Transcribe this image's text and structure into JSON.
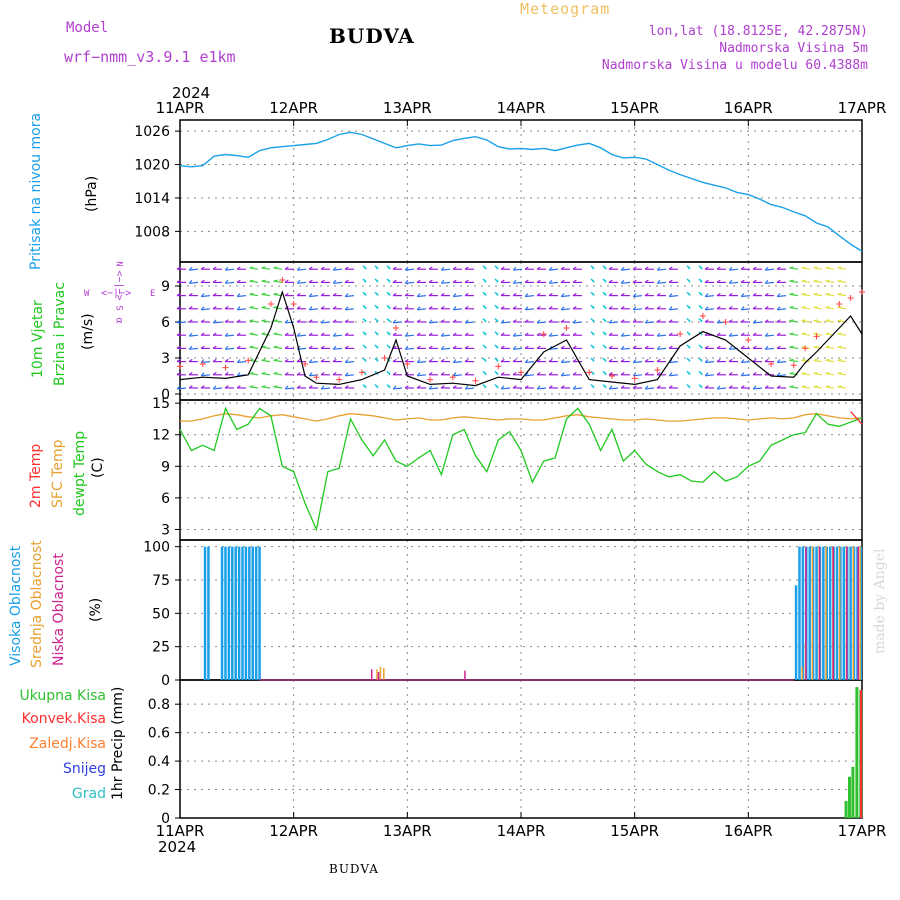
{
  "header": {
    "model_label": "Model",
    "model_name": "wrf−nmm_v3.9.1  e1km",
    "city": "BUDVA",
    "meteogram": "Meteogram",
    "lonlat": "lon,lat (18.8125E, 42.2875N)",
    "elevation": "Nadmorska Visina 5m",
    "model_elevation": "Nadmorska Visina u modelu 60.4388m",
    "footer_city": "BUDVA",
    "watermark": "made by Angel"
  },
  "time_axis": {
    "year": "2024",
    "labels": [
      "11APR",
      "12APR",
      "13APR",
      "14APR",
      "15APR",
      "16APR",
      "17APR"
    ]
  },
  "colors": {
    "pressure": "#1aa0e8",
    "wind_speed": "#000000",
    "wind_gust": "#ff4040",
    "temp2m": "#ff3030",
    "sfc": "#e8a030",
    "dewpt": "#20c820",
    "cloud_high": "#1aa0e8",
    "cloud_mid": "#e8a030",
    "cloud_low": "#d02090",
    "precip_total": "#30c030",
    "precip_conv": "#ff3030",
    "magenta": "#b040d0"
  },
  "chart_data": [
    {
      "type": "line",
      "panel": "pressure",
      "ylabel_1": "Pritisak na nivou mora",
      "ylabel_2": "(hPa)",
      "yticks": [
        1008,
        1014,
        1020,
        1026
      ],
      "ylim": [
        1002.5,
        1028
      ],
      "x_days": [
        0,
        0.1,
        0.2,
        0.3,
        0.4,
        0.5,
        0.6,
        0.7,
        0.8,
        0.9,
        1.0,
        1.1,
        1.2,
        1.3,
        1.4,
        1.5,
        1.6,
        1.7,
        1.8,
        1.9,
        2.0,
        2.1,
        2.2,
        2.3,
        2.4,
        2.5,
        2.6,
        2.7,
        2.8,
        2.9,
        3.0,
        3.1,
        3.2,
        3.3,
        3.4,
        3.5,
        3.6,
        3.7,
        3.8,
        3.9,
        4.0,
        4.1,
        4.2,
        4.3,
        4.4,
        4.5,
        4.6,
        4.7,
        4.8,
        4.9,
        5.0,
        5.1,
        5.2,
        5.3,
        5.4,
        5.5,
        5.6,
        5.7,
        5.8,
        5.9,
        6.0
      ],
      "values": [
        1019.8,
        1019.6,
        1019.8,
        1021.5,
        1021.8,
        1021.6,
        1021.3,
        1022.5,
        1023.0,
        1023.2,
        1023.4,
        1023.6,
        1023.8,
        1024.5,
        1025.4,
        1025.8,
        1025.4,
        1024.6,
        1023.8,
        1023.0,
        1023.4,
        1023.7,
        1023.4,
        1023.5,
        1024.3,
        1024.7,
        1025.0,
        1024.4,
        1023.2,
        1022.8,
        1022.9,
        1022.7,
        1022.9,
        1022.5,
        1023.0,
        1023.5,
        1023.8,
        1023.0,
        1021.8,
        1021.2,
        1021.3,
        1021.0,
        1020.0,
        1019.0,
        1018.2,
        1017.5,
        1016.8,
        1016.3,
        1015.8,
        1015.0,
        1014.6,
        1013.8,
        1012.8,
        1012.3,
        1011.5,
        1010.8,
        1009.5,
        1008.8,
        1007.2,
        1005.7,
        1004.4
      ]
    },
    {
      "type": "line",
      "panel": "wind",
      "ylabel_1": "10m Vjetar",
      "ylabel_2": "Brzina i Pravac",
      "ylabel_3": "(m/s)",
      "compass": {
        "n": "N",
        "w": "W",
        "e": "E",
        "s": "S",
        "arrows": "<−|−>",
        "arrows2": "<−|−>",
        "alpha": "α"
      },
      "yticks": [
        0,
        3,
        6,
        9
      ],
      "ylim": [
        -0.5,
        11
      ],
      "x_days": [
        0,
        0.2,
        0.4,
        0.6,
        0.8,
        0.9,
        1.0,
        1.1,
        1.2,
        1.4,
        1.6,
        1.8,
        1.9,
        2.0,
        2.2,
        2.4,
        2.6,
        2.8,
        3.0,
        3.2,
        3.4,
        3.6,
        3.8,
        4.0,
        4.2,
        4.4,
        4.6,
        4.8,
        5.0,
        5.2,
        5.4,
        5.5,
        5.6,
        5.8,
        5.9,
        6.0
      ],
      "speed": [
        1.2,
        1.4,
        1.3,
        1.6,
        5.5,
        8.5,
        5.5,
        1.5,
        0.9,
        0.8,
        1.2,
        2.0,
        4.5,
        1.5,
        0.8,
        0.9,
        0.7,
        1.4,
        1.2,
        3.5,
        4.5,
        1.2,
        1.0,
        0.8,
        1.2,
        4.0,
        5.2,
        4.5,
        3.0,
        1.5,
        1.4,
        2.6,
        3.5,
        5.5,
        6.5,
        5.0
      ],
      "gust": [
        2.3,
        2.5,
        2.2,
        2.8,
        7.5,
        9.5,
        7.5,
        2.5,
        1.4,
        1.2,
        1.8,
        3.0,
        5.5,
        2.5,
        1.2,
        1.4,
        1.1,
        2.3,
        1.8,
        5.0,
        5.5,
        1.8,
        1.5,
        1.3,
        2.0,
        5.0,
        6.5,
        6.0,
        4.5,
        2.5,
        2.4,
        3.8,
        4.8,
        7.5,
        8.0,
        8.5
      ]
    },
    {
      "type": "line",
      "panel": "temperature",
      "ylabel_1": "2m Temp",
      "ylabel_2": "SFC Temp",
      "ylabel_3": "dewpt Temp",
      "ylabel_4": "(C)",
      "yticks": [
        3,
        6,
        9,
        12,
        15
      ],
      "ylim": [
        2,
        15.3
      ],
      "x_days": [
        0,
        0.1,
        0.2,
        0.3,
        0.4,
        0.5,
        0.6,
        0.7,
        0.8,
        0.9,
        1.0,
        1.1,
        1.2,
        1.3,
        1.4,
        1.5,
        1.6,
        1.7,
        1.8,
        1.9,
        2.0,
        2.1,
        2.2,
        2.3,
        2.4,
        2.5,
        2.6,
        2.7,
        2.8,
        2.9,
        3.0,
        3.1,
        3.2,
        3.3,
        3.4,
        3.5,
        3.6,
        3.7,
        3.8,
        3.9,
        4.0,
        4.1,
        4.2,
        4.3,
        4.4,
        4.5,
        4.6,
        4.7,
        4.8,
        4.9,
        5.0,
        5.1,
        5.2,
        5.3,
        5.4,
        5.5,
        5.6,
        5.7,
        5.8,
        5.9,
        6.0
      ],
      "temp2m": [
        null,
        null,
        null,
        null,
        null,
        null,
        null,
        null,
        null,
        null,
        null,
        null,
        null,
        null,
        null,
        null,
        null,
        null,
        null,
        null,
        null,
        null,
        null,
        null,
        null,
        null,
        null,
        null,
        null,
        null,
        null,
        null,
        null,
        null,
        null,
        null,
        null,
        null,
        null,
        null,
        null,
        null,
        null,
        null,
        null,
        null,
        null,
        null,
        null,
        null,
        null,
        null,
        null,
        null,
        null,
        null,
        null,
        null,
        null,
        14.2,
        13.0
      ],
      "sfc": [
        13.3,
        13.3,
        13.5,
        13.8,
        14.0,
        13.9,
        13.7,
        13.6,
        13.8,
        13.9,
        13.7,
        13.5,
        13.3,
        13.5,
        13.8,
        14.0,
        13.9,
        13.8,
        13.6,
        13.4,
        13.5,
        13.6,
        13.4,
        13.4,
        13.6,
        13.7,
        13.6,
        13.5,
        13.4,
        13.5,
        13.5,
        13.4,
        13.4,
        13.6,
        13.8,
        13.9,
        13.7,
        13.6,
        13.5,
        13.4,
        13.4,
        13.5,
        13.4,
        13.3,
        13.3,
        13.4,
        13.5,
        13.6,
        13.6,
        13.5,
        13.4,
        13.5,
        13.6,
        13.5,
        13.6,
        13.9,
        14.0,
        13.8,
        13.6,
        13.5,
        13.6
      ],
      "dewpt": [
        12.5,
        10.5,
        11.0,
        10.5,
        14.5,
        12.5,
        13.0,
        14.5,
        13.8,
        9.0,
        8.5,
        5.5,
        3.0,
        8.5,
        8.8,
        13.5,
        11.5,
        10.0,
        11.5,
        9.5,
        9.0,
        9.8,
        10.5,
        8.2,
        12.0,
        12.5,
        10.0,
        8.5,
        11.5,
        12.3,
        10.5,
        7.5,
        9.5,
        9.8,
        13.5,
        14.5,
        13.0,
        10.5,
        12.5,
        9.5,
        10.5,
        9.2,
        8.5,
        8.0,
        8.2,
        7.6,
        7.5,
        8.5,
        7.6,
        8.0,
        9.0,
        9.5,
        11.0,
        11.5,
        12.0,
        12.2,
        14.0,
        13.0,
        12.8,
        13.2,
        13.6
      ]
    },
    {
      "type": "bar",
      "panel": "cloud",
      "ylabel_1": "Visoka Oblacnost",
      "ylabel_2": "Srednja Oblacnost",
      "ylabel_3": "Niska Oblacnost",
      "ylabel_4": "(%)",
      "yticks": [
        0,
        25,
        50,
        75,
        100
      ],
      "ylim": [
        0,
        105
      ],
      "high_x": [
        0.22,
        0.25,
        0.37,
        0.4,
        0.43,
        0.46,
        0.49,
        0.52,
        0.55,
        0.58,
        0.61,
        0.64,
        0.67,
        0.7,
        5.42,
        5.45,
        5.48,
        5.51,
        5.54,
        5.57,
        5.6,
        5.63,
        5.66,
        5.69,
        5.72,
        5.75,
        5.78,
        5.81,
        5.84,
        5.87,
        5.9,
        5.93,
        5.96,
        5.99
      ],
      "high_v": [
        100,
        100,
        100,
        100,
        100,
        100,
        100,
        100,
        100,
        100,
        100,
        100,
        100,
        100,
        71,
        100,
        100,
        100,
        100,
        100,
        100,
        100,
        100,
        100,
        100,
        100,
        100,
        100,
        100,
        100,
        100,
        100,
        100,
        100
      ],
      "mid_x": [
        1.72,
        1.75,
        1.78,
        5.46,
        5.49,
        5.55,
        5.61,
        5.67,
        5.73,
        5.79,
        5.85,
        5.91,
        5.97
      ],
      "mid_v": [
        8,
        10,
        9,
        10,
        28,
        100,
        100,
        100,
        100,
        100,
        100,
        100,
        100
      ],
      "low_x": [
        1.7,
        1.76,
        2.52,
        5.52,
        5.64,
        5.76,
        5.88,
        5.98
      ],
      "low_v": [
        8,
        6,
        7,
        100,
        100,
        100,
        100,
        100
      ]
    },
    {
      "type": "bar",
      "panel": "precip",
      "legend": [
        "Ukupna Kisa",
        "Konvek.Kisa",
        "Zaledj.Kisa",
        "Snijeg",
        "Grad"
      ],
      "legend_colors": [
        "#30c030",
        "#ff3030",
        "#ff8030",
        "#3040e0",
        "#30c0c0"
      ],
      "ylabel": "1hr Precip (mm)",
      "yticks": [
        0,
        0.2,
        0.4,
        0.6,
        0.8
      ],
      "ylim": [
        0,
        0.97
      ],
      "total_x": [
        5.86,
        5.89,
        5.92,
        5.955,
        5.99
      ],
      "total_v": [
        0.12,
        0.29,
        0.36,
        0.92,
        0.9
      ],
      "conv_x": [
        6.0
      ],
      "conv_v": [
        0.9
      ]
    }
  ]
}
